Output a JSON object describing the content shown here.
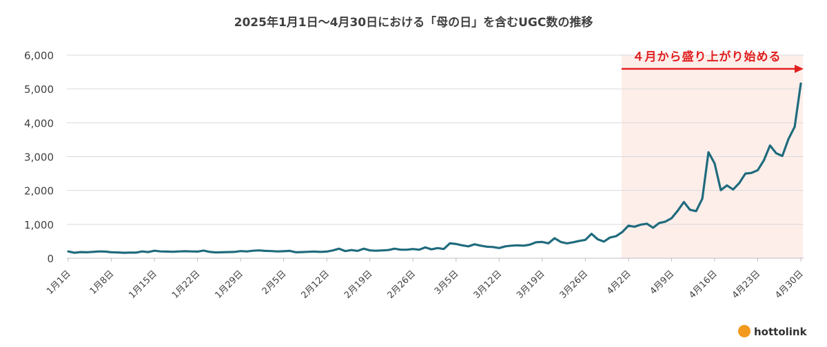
{
  "chart_data": {
    "type": "line",
    "title": "2025年1月1日～4月30日における「母の日」を含むUGC数の推移",
    "xlabel": "",
    "ylabel": "",
    "ylim": [
      0,
      6000
    ],
    "yticks": [
      0,
      1000,
      2000,
      3000,
      4000,
      5000,
      6000
    ],
    "ytick_labels": [
      "0",
      "1,000",
      "2,000",
      "3,000",
      "4,000",
      "5,000",
      "6,000"
    ],
    "x_tick_labels": [
      "1月1日",
      "1月8日",
      "1月15日",
      "1月22日",
      "1月29日",
      "2月5日",
      "2月12日",
      "2月19日",
      "2月26日",
      "3月5日",
      "3月12日",
      "3月19日",
      "3月26日",
      "4月2日",
      "4月9日",
      "4月16日",
      "4月23日",
      "4月30日"
    ],
    "x_tick_day_index": [
      0,
      7,
      14,
      21,
      28,
      35,
      42,
      49,
      56,
      63,
      70,
      77,
      84,
      91,
      98,
      105,
      112,
      119
    ],
    "grid": "horizontal",
    "line_color": "#1f6b7d",
    "highlight": {
      "from_label": "4月1日",
      "to_label": "4月30日",
      "from_index": 90,
      "to_index": 119,
      "color": "#fdeeea",
      "label": "４月から盛り上がり始める",
      "arrow_color": "#e02020"
    },
    "series": [
      {
        "values": [
          200,
          160,
          180,
          175,
          185,
          200,
          195,
          175,
          170,
          160,
          165,
          165,
          200,
          180,
          220,
          200,
          195,
          190,
          200,
          205,
          200,
          195,
          225,
          185,
          170,
          175,
          180,
          185,
          210,
          200,
          220,
          230,
          215,
          210,
          200,
          205,
          215,
          175,
          180,
          190,
          195,
          185,
          195,
          230,
          280,
          210,
          240,
          215,
          280,
          230,
          220,
          230,
          240,
          280,
          250,
          250,
          270,
          250,
          320,
          260,
          300,
          270,
          440,
          420,
          380,
          350,
          410,
          370,
          340,
          330,
          300,
          350,
          370,
          380,
          370,
          400,
          470,
          480,
          440,
          590,
          480,
          440,
          470,
          510,
          540,
          720,
          560,
          490,
          610,
          650,
          770,
          960,
          930,
          990,
          1020,
          900,
          1040,
          1080,
          1180,
          1400,
          1660,
          1430,
          1390,
          1760,
          3130,
          2800,
          2010,
          2150,
          2030,
          2220,
          2500,
          2520,
          2600,
          2890,
          3330,
          3100,
          3020,
          3520,
          3880,
          5160
        ]
      }
    ]
  },
  "brand": {
    "name": "hottolink",
    "logo_color": "#f39a1e"
  }
}
